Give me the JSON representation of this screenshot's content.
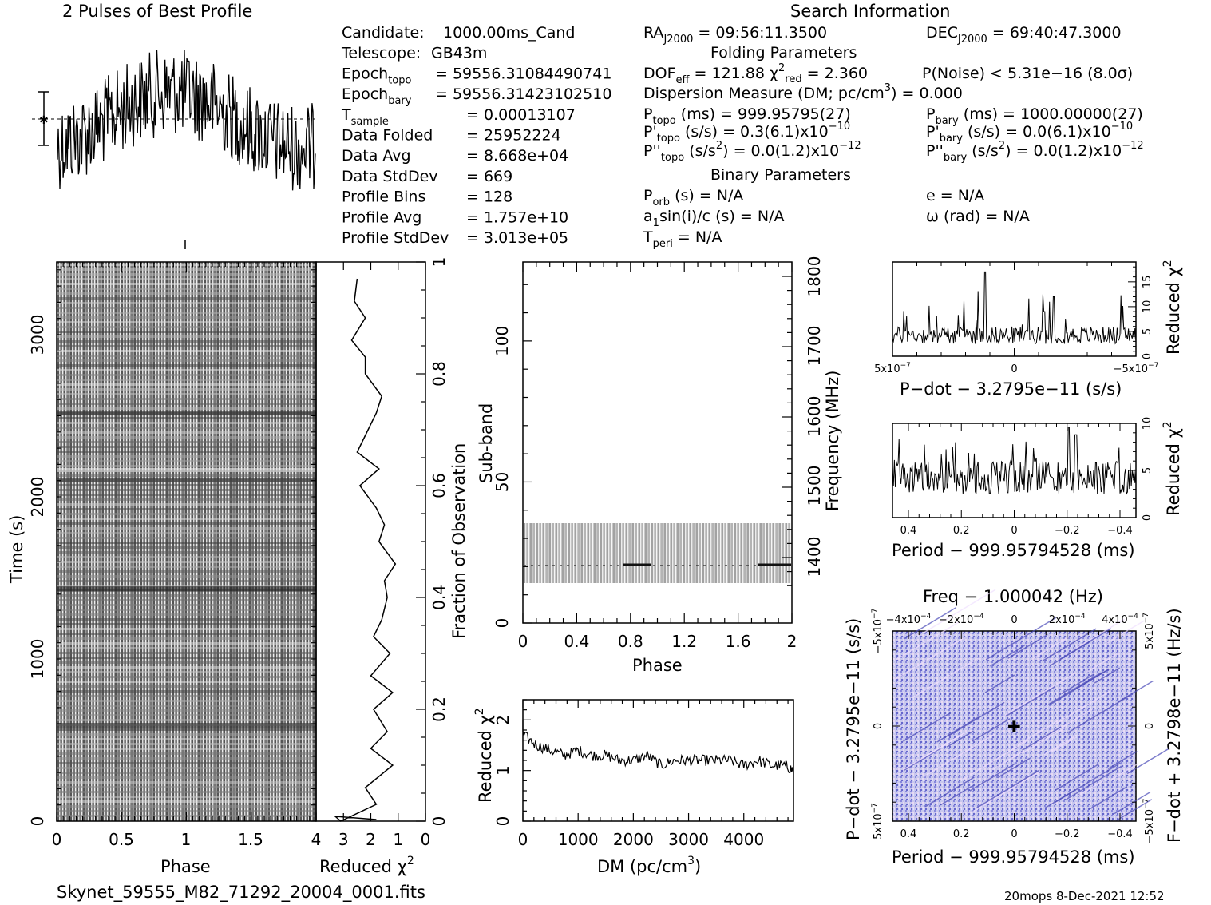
{
  "top_left_title": "2 Pulses of Best Profile",
  "search_title": "Search Information",
  "candidate_block": [
    {
      "label": "Candidate:",
      "value": "1000.00ms_Cand"
    },
    {
      "label": "Telescope:",
      "value": "GB43m"
    },
    {
      "label": "Epoch",
      "sub": "topo",
      "value": "= 59556.31084490741"
    },
    {
      "label": "Epoch",
      "sub": "bary",
      "value": "= 59556.31423102510"
    },
    {
      "label": "T",
      "sub": "sample",
      "value": "=    0.00013107"
    },
    {
      "label": "Data Folded",
      "value": "=   25952224"
    },
    {
      "label": "Data Avg",
      "value": "=   8.668e+04"
    },
    {
      "label": "Data StdDev",
      "value": "=   669"
    },
    {
      "label": "Profile Bins",
      "value": "=   128"
    },
    {
      "label": "Profile Avg",
      "value": "=   1.757e+10"
    },
    {
      "label": "Profile StdDev",
      "value": "=   3.013e+05"
    }
  ],
  "ra": {
    "label": "RA",
    "sub": "J2000",
    "value": "= 09:56:11.3500"
  },
  "dec": {
    "label": "DEC",
    "sub": "J2000",
    "value": "= 69:40:47.3000"
  },
  "folding_title": "Folding Parameters",
  "dof": "DOF",
  "dof_sub": "eff",
  "dof_value": "= 121.88",
  "chi2_label": "χ",
  "chi2_sup": "2",
  "chi2_sub": "red",
  "chi2_value": "= 2.360",
  "pnoise": "P(Noise) < 5.31e−16   (8.0σ)",
  "dm_line": "Dispersion Measure (DM; pc/cm",
  "dm_sup": "3",
  "dm_tail": ") = 0.000",
  "ptopo": {
    "label": "P",
    "sub": "topo",
    "value": "(ms)  =   999.95795(27)"
  },
  "pbary": {
    "label": "P",
    "sub": "bary",
    "value": "(ms)  =   1000.00000(27)"
  },
  "pdtopo": {
    "label": "P'",
    "sub": "topo",
    "value": "(s/s) =   0.3(6.1)x10",
    "sup": "−10"
  },
  "pdbary": {
    "label": "P'",
    "sub": "bary",
    "value": "(s/s) = 0.0(6.1)x10",
    "sup": "−10"
  },
  "pddtopo": {
    "label": "P''",
    "sub": "topo",
    "value": "(s/s",
    "sup2": "2",
    "tail": ") = 0.0(1.2)x10",
    "sup": "−12"
  },
  "pddbary": {
    "label": "P''",
    "sub": "bary",
    "value": "(s/s",
    "sup2": "2",
    "tail": ") = 0.0(1.2)x10",
    "sup": "−12"
  },
  "binary_title": "Binary Parameters",
  "porb": {
    "label": "P",
    "sub": "orb",
    "value": "(s) = N/A"
  },
  "ecc": "e = N/A",
  "a1": {
    "label": "a",
    "sub": "1",
    "value": "sin(i)/c (s) = N/A"
  },
  "omega": "ω (rad) = N/A",
  "tperi": {
    "label": "T",
    "sub": "peri",
    "value": "= N/A"
  },
  "footer_file": "Skynet_59555_M82_71292_20004_0001.fits",
  "footer_right": "20mops  8-Dec-2021 12:52",
  "chart_data": [
    {
      "type": "line",
      "id": "profile",
      "title": "2 Pulses of Best Profile",
      "xlim": [
        0,
        2
      ],
      "note": "pulse profile, noise-like"
    },
    {
      "type": "heatmap",
      "id": "time-phase",
      "xlabel": "Phase",
      "ylabel": "Time (s)",
      "xticks": [
        "0",
        "0.5",
        "1",
        "1.5"
      ],
      "yticks": [
        "0",
        "1000",
        "2000",
        "3000"
      ],
      "xlim": [
        0,
        2
      ],
      "ylim": [
        0,
        3450
      ]
    },
    {
      "type": "line",
      "id": "time-chi2",
      "xlabel": "Reduced χ",
      "xlabel_sup": "2",
      "ylabel": "Fraction of Observation",
      "xticks": [
        "4",
        "3",
        "2",
        "1",
        "0"
      ],
      "yticks": [
        "0",
        "0.2",
        "0.4",
        "0.6",
        "0.8",
        "1"
      ],
      "xlim": [
        4,
        0
      ],
      "ylim": [
        0,
        1
      ],
      "x": [
        3.1,
        1.8,
        2.2,
        1.2,
        2.0,
        1.4,
        1.9,
        1.2,
        2.0,
        1.3,
        1.9,
        1.6,
        1.4,
        1.5,
        1.1,
        1.7,
        1.5,
        1.8,
        2.4,
        1.7,
        2.5,
        2.1,
        1.8,
        1.6,
        2.2,
        2.2,
        2.7,
        2.2,
        2.6,
        2.5
      ],
      "y": [
        0.0,
        0.03,
        0.06,
        0.1,
        0.13,
        0.16,
        0.2,
        0.23,
        0.26,
        0.3,
        0.33,
        0.36,
        0.4,
        0.43,
        0.46,
        0.5,
        0.53,
        0.56,
        0.6,
        0.63,
        0.66,
        0.7,
        0.73,
        0.76,
        0.8,
        0.83,
        0.86,
        0.9,
        0.93,
        0.97
      ]
    },
    {
      "type": "heatmap",
      "id": "subband-phase",
      "xlabel": "Phase",
      "ylabel": "Sub-band",
      "y2label": "Frequency (MHz)",
      "xticks": [
        "0",
        "0.4",
        "0.8",
        "1.2",
        "1.6",
        "2"
      ],
      "yticks": [
        "0",
        "50",
        "100"
      ],
      "y2ticks": [
        "1400",
        "1500",
        "1600",
        "1700",
        "1800"
      ],
      "xlim": [
        0,
        2
      ],
      "ylim": [
        0,
        128
      ],
      "band_range": [
        14,
        35
      ]
    },
    {
      "type": "line",
      "id": "dm-chi2",
      "xlabel": "DM (pc/cm",
      "xlabel_sup": "3",
      "xlabel_tail": ")",
      "ylabel": "Reduced χ",
      "ylabel_sup": "2",
      "xticks": [
        "0",
        "1000",
        "2000",
        "3000",
        "4000"
      ],
      "yticks": [
        "0",
        "1",
        "2"
      ],
      "xlim": [
        0,
        4900
      ],
      "ylim": [
        0,
        2.4
      ],
      "x": [
        0,
        250,
        500,
        750,
        1000,
        1250,
        1500,
        1750,
        2000,
        2250,
        2500,
        2750,
        3000,
        3250,
        3500,
        3750,
        4000,
        4250,
        4500,
        4750,
        4900
      ],
      "y": [
        1.7,
        1.5,
        1.4,
        1.3,
        1.4,
        1.3,
        1.3,
        1.2,
        1.2,
        1.3,
        1.1,
        1.2,
        1.2,
        1.2,
        1.2,
        1.2,
        1.1,
        1.2,
        1.1,
        1.1,
        1.0
      ]
    },
    {
      "type": "line",
      "id": "pdot-chi2",
      "xlabel": "P−dot − 3.2795e−11 (s/s)",
      "ylabel": "Reduced χ",
      "ylabel_sup": "2",
      "xticks": [
        "5x10",
        "0",
        "−5x10"
      ],
      "xtick_sup": "−7",
      "yticks": [
        "0",
        "5",
        "10",
        "15"
      ],
      "ylim": [
        0,
        19
      ],
      "peak_index": 0.38,
      "peak_value": 17
    },
    {
      "type": "line",
      "id": "period-chi2",
      "xlabel": "Period − 999.95794528 (ms)",
      "ylabel": "Reduced χ",
      "ylabel_sup": "2",
      "xticks": [
        "0.4",
        "0.2",
        "0",
        "−0.2",
        "−0.4"
      ],
      "yticks": [
        "0",
        "5",
        "10"
      ],
      "ylim": [
        0,
        10
      ]
    },
    {
      "type": "heatmap",
      "id": "pp-dot",
      "title": "Freq − 1.000042 (Hz)",
      "xlabel": "Period − 999.95794528 (ms)",
      "ylabel": "P−dot − 3.2795e−11 (s/s)",
      "y2label": "F−dot + 3.2798e−11 (Hz/s)",
      "xticks": [
        "0.4",
        "0.2",
        "0",
        "−0.2",
        "−0.4"
      ],
      "x2ticks": [
        "−4x10",
        "−2x10",
        "0",
        "2x10",
        "4x10"
      ],
      "x2tick_sup": "−4",
      "yticks": [
        "5x10",
        "0",
        "−5x10"
      ],
      "ytick_sup": "−7",
      "y2ticks": [
        "−5x10",
        "0",
        "5x10"
      ],
      "y2tick_sup": "−7"
    }
  ]
}
